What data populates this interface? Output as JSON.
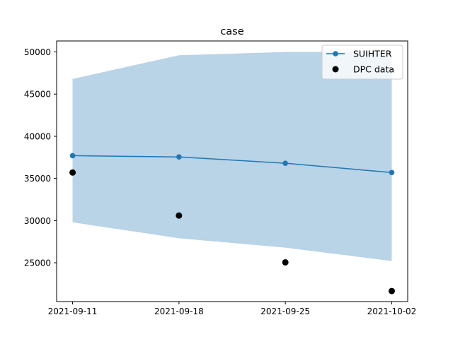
{
  "chart_data": {
    "type": "line",
    "title": "case",
    "xlabel": "",
    "ylabel": "",
    "x": [
      "2021-09-11",
      "2021-09-18",
      "2021-09-25",
      "2021-10-02"
    ],
    "x_tick_labels": [
      "2021-09-11",
      "2021-09-18",
      "2021-09-25",
      "2021-10-02"
    ],
    "ylim": [
      20400,
      51300
    ],
    "y_ticks": [
      25000,
      30000,
      35000,
      40000,
      45000,
      50000
    ],
    "y_tick_labels": [
      "25000",
      "30000",
      "35000",
      "40000",
      "45000",
      "50000"
    ],
    "grid": false,
    "legend_position": "top-right",
    "series": [
      {
        "name": "SUIHTER",
        "kind": "line-with-markers",
        "color": "#1f77b4",
        "values": [
          37700,
          37550,
          36800,
          35700
        ],
        "band_lower": [
          29800,
          27900,
          26800,
          25200
        ],
        "band_upper": [
          46800,
          49600,
          50000,
          50000
        ],
        "band_color": "#b9d3e7"
      },
      {
        "name": "DPC data",
        "kind": "scatter",
        "color": "#000000",
        "values": [
          35700,
          30600,
          25050,
          21650
        ]
      }
    ]
  }
}
